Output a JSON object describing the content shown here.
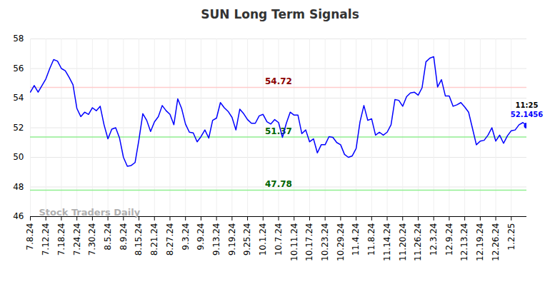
{
  "chart_data": {
    "type": "line",
    "title": "SUN Long Term Signals",
    "color": "#0000ff",
    "categories": [
      "7.8.24",
      null,
      null,
      null,
      "7.12.24",
      null,
      null,
      null,
      "7.18.24",
      null,
      null,
      null,
      "7.24.24",
      null,
      null,
      null,
      "7.30.24",
      null,
      null,
      null,
      "8.5.24",
      null,
      null,
      null,
      "8.9.24",
      null,
      null,
      null,
      "8.15.24",
      null,
      null,
      null,
      "8.21.24",
      null,
      null,
      null,
      "8.27.24",
      null,
      null,
      null,
      "9.3.24",
      null,
      null,
      null,
      "9.9.24",
      null,
      null,
      null,
      "9.13.24",
      null,
      null,
      null,
      "9.19.24",
      null,
      null,
      null,
      "9.25.24",
      null,
      null,
      null,
      "10.1.24",
      null,
      null,
      null,
      "10.7.24",
      null,
      null,
      null,
      "10.11.24",
      null,
      null,
      null,
      "10.17.24",
      null,
      null,
      null,
      "10.23.24",
      null,
      null,
      null,
      "10.29.24",
      null,
      null,
      null,
      "11.4.24",
      null,
      null,
      null,
      "11.8.24",
      null,
      null,
      null,
      "11.14.24",
      null,
      null,
      null,
      "11.20.24",
      null,
      null,
      null,
      "11.26.24",
      null,
      null,
      null,
      "12.3.24",
      null,
      null,
      null,
      "12.9.24",
      null,
      null,
      null,
      "12.13.24",
      null,
      null,
      null,
      "12.19.24",
      null,
      null,
      null,
      "12.26.24",
      null,
      null,
      null,
      "1.2.25",
      null,
      null,
      null,
      null
    ],
    "values": [
      54.4,
      54.85,
      54.4,
      54.85,
      55.3,
      56.0,
      56.6,
      56.5,
      56.0,
      55.85,
      55.4,
      54.9,
      53.3,
      52.75,
      53.05,
      52.9,
      53.35,
      53.15,
      53.45,
      52.2,
      51.25,
      51.9,
      52.0,
      51.3,
      50.0,
      49.4,
      49.45,
      49.65,
      51.2,
      52.95,
      52.5,
      51.75,
      52.4,
      52.75,
      53.5,
      53.15,
      52.9,
      52.2,
      53.95,
      53.3,
      52.25,
      51.7,
      51.65,
      51.05,
      51.4,
      51.85,
      51.3,
      52.5,
      52.65,
      53.7,
      53.35,
      53.1,
      52.7,
      51.85,
      53.25,
      52.95,
      52.55,
      52.3,
      52.3,
      52.8,
      52.9,
      52.4,
      52.25,
      52.55,
      52.35,
      51.35,
      52.3,
      53.05,
      52.85,
      52.85,
      51.6,
      51.85,
      51.05,
      51.25,
      50.3,
      50.85,
      50.85,
      51.4,
      51.35,
      51.0,
      50.85,
      50.2,
      50.0,
      50.1,
      50.6,
      52.4,
      53.5,
      52.5,
      52.6,
      51.5,
      51.7,
      51.5,
      51.7,
      52.2,
      53.9,
      53.85,
      53.45,
      54.1,
      54.35,
      54.4,
      54.2,
      54.7,
      56.45,
      56.7,
      56.8,
      54.75,
      55.25,
      54.15,
      54.15,
      53.45,
      53.55,
      53.7,
      53.4,
      53.05,
      51.95,
      50.85,
      51.1,
      51.15,
      51.5,
      52.0,
      51.1,
      51.5,
      50.95,
      51.45,
      51.8,
      51.85,
      52.2,
      52.35,
      52.1456
    ],
    "ylim": [
      46,
      58
    ],
    "yticks": [
      46,
      48,
      50,
      52,
      54,
      56,
      58
    ],
    "grid": true,
    "levels": [
      {
        "value": 54.72,
        "color": "#8b0000",
        "line_color": "#ffcccc"
      },
      {
        "value": 51.37,
        "color": "#006400",
        "line_color": "#90ee90"
      },
      {
        "value": 47.78,
        "color": "#006400",
        "line_color": "#90ee90"
      }
    ],
    "last_label": "11:25",
    "watermark": "Stock Traders Daily"
  }
}
